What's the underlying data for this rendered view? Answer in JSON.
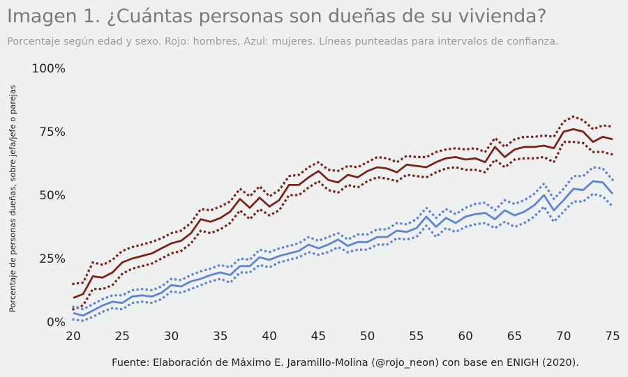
{
  "chart_data": {
    "type": "line",
    "title": "Imagen 1. ¿Cuántas personas son dueñas de su vivienda?",
    "subtitle": "Porcentaje según edad y sexo. Rojo: hombres, Azul: mujeres. Líneas punteadas para intervalos de confianza.",
    "xlabel": "",
    "ylabel": "Porcentaje de personas dueñas, sobre jefa/jefe o parejas",
    "caption": "Fuente: Elaboración de Máximo E. Jaramillo-Molina (@rojo_neon) con base en ENIGH (2020).",
    "xlim": [
      20,
      75
    ],
    "ylim": [
      0,
      100
    ],
    "x_ticks": [
      20,
      25,
      30,
      35,
      40,
      45,
      50,
      55,
      60,
      65,
      70,
      75
    ],
    "x_tick_labels": [
      "20",
      "25",
      "30",
      "35",
      "40",
      "45",
      "50",
      "55",
      "60",
      "65",
      "70",
      "75"
    ],
    "y_ticks": [
      0,
      25,
      50,
      75,
      100
    ],
    "y_tick_labels": [
      "0%",
      "25%",
      "50%",
      "75%",
      "100%"
    ],
    "grid": false,
    "legend": "none (described in subtitle)",
    "x": [
      20,
      21,
      22,
      23,
      24,
      25,
      26,
      27,
      28,
      29,
      30,
      31,
      32,
      33,
      34,
      35,
      36,
      37,
      38,
      39,
      40,
      41,
      42,
      43,
      44,
      45,
      46,
      47,
      48,
      49,
      50,
      51,
      52,
      53,
      54,
      55,
      56,
      57,
      58,
      59,
      60,
      61,
      62,
      63,
      64,
      65,
      66,
      67,
      68,
      69,
      70,
      71,
      72,
      73,
      74,
      75
    ],
    "series": [
      {
        "name": "Hombres",
        "color": "#7b2416",
        "values": [
          9.5,
          11,
          18,
          17.5,
          19.5,
          23.5,
          25,
          26,
          27,
          29,
          31,
          32,
          35,
          40.5,
          39.5,
          41,
          43.5,
          48.5,
          45,
          49,
          45.5,
          48,
          54,
          54,
          57,
          59.5,
          56,
          55,
          58,
          57,
          59.5,
          61,
          60.5,
          59,
          62,
          61.5,
          61,
          63,
          64.5,
          65,
          64,
          64.5,
          63,
          69,
          65,
          68,
          69,
          69,
          69.5,
          68.5,
          75,
          76,
          75,
          71,
          73,
          72
        ],
        "lower": [
          5,
          6.5,
          13,
          13,
          14.5,
          19,
          21,
          22,
          23,
          25,
          27,
          28,
          31,
          36,
          35,
          36.5,
          39,
          44,
          40.5,
          44.5,
          42,
          44,
          50,
          50,
          53,
          55.5,
          52,
          51,
          54,
          53,
          55.5,
          57,
          56.5,
          55.5,
          58,
          57.5,
          57,
          59,
          60.5,
          61,
          60,
          60,
          59,
          64,
          61,
          64,
          64.5,
          64.5,
          65,
          63,
          71,
          71,
          70.5,
          67,
          67,
          66
        ],
        "upper": [
          15,
          15.5,
          23.5,
          22.5,
          24.5,
          28,
          29.5,
          30.5,
          31.5,
          33,
          35,
          36,
          39,
          44.5,
          44,
          45.5,
          47.5,
          52.5,
          49.5,
          53.5,
          49.5,
          52,
          57.5,
          58,
          61,
          63,
          60,
          59.5,
          61.5,
          61,
          63,
          65,
          64.5,
          63,
          65.5,
          65,
          65,
          67,
          68,
          68.5,
          68,
          68.5,
          67,
          72.5,
          69,
          72,
          73,
          73,
          73.5,
          73,
          79,
          81,
          79.5,
          76,
          77.5,
          77
        ]
      },
      {
        "name": "Mujeres",
        "color": "#5a84d6",
        "values": [
          3.5,
          2.5,
          4.5,
          6.5,
          8,
          7.5,
          10,
          10.5,
          10,
          11.5,
          14.5,
          14,
          16,
          17,
          18.5,
          19.5,
          18.5,
          22,
          22,
          25.5,
          24.5,
          26,
          27,
          28,
          30.5,
          29,
          30.5,
          32.5,
          30,
          31.5,
          31.5,
          33.5,
          33.5,
          36,
          35.5,
          37,
          41.5,
          37.5,
          41,
          39,
          41.5,
          42.5,
          43,
          40.5,
          44,
          42,
          43.5,
          46,
          50,
          44,
          48,
          52.5,
          52,
          55.5,
          55,
          50.5
        ],
        "lower": [
          1,
          0.5,
          2,
          4,
          5.5,
          5,
          7.5,
          8,
          7.5,
          9,
          12,
          11.5,
          13,
          14.5,
          16,
          17,
          15.5,
          19.5,
          19.5,
          22.5,
          21.5,
          23.5,
          24.5,
          25.5,
          27.5,
          26.5,
          27.5,
          29.5,
          27.5,
          28.5,
          28.5,
          30.5,
          30.5,
          33,
          32.5,
          33.5,
          38,
          33.5,
          37,
          35.5,
          37.5,
          38.5,
          39,
          37,
          39.5,
          37.5,
          39,
          41.5,
          45.5,
          39.5,
          43.5,
          47.5,
          47.5,
          50.5,
          49.5,
          45.5
        ],
        "upper": [
          6,
          5,
          7,
          9,
          10.5,
          10.5,
          12.5,
          13,
          12.5,
          14,
          17,
          16.5,
          18.5,
          20,
          21,
          22.5,
          21.5,
          25,
          24.5,
          28.5,
          27.5,
          29,
          30,
          31,
          33.5,
          32,
          33.5,
          35,
          32.5,
          34.5,
          34.5,
          36.5,
          36.5,
          39,
          38.5,
          40.5,
          45,
          41,
          44.5,
          42.5,
          45,
          46.5,
          47,
          44,
          48,
          46.5,
          48,
          50.5,
          54.5,
          48.5,
          52.5,
          57.5,
          57.5,
          61,
          60.5,
          56
        ]
      }
    ]
  }
}
